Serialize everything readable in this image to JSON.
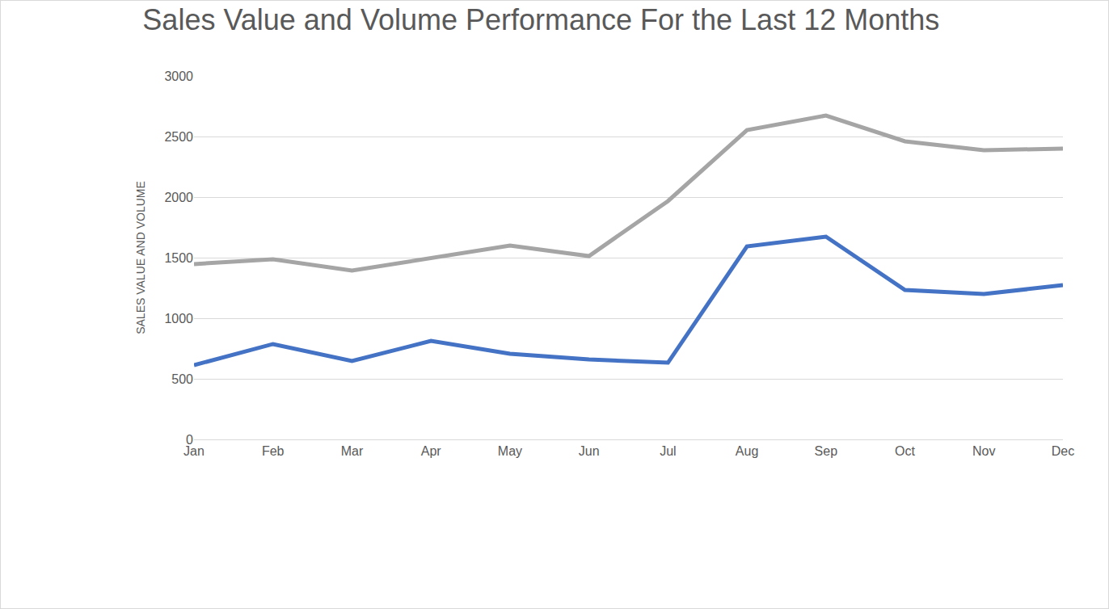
{
  "chart_data": {
    "type": "line",
    "title": "Sales Value and Volume Performance For the Last 12 Months",
    "y_label": "SALES VALUE AND VOLUME",
    "categories": [
      "Jan",
      "Feb",
      "Mar",
      "Apr",
      "May",
      "Jun",
      "Jul",
      "Aug",
      "Sep",
      "Oct",
      "Nov",
      "Dec"
    ],
    "series": [
      {
        "color": "#a5a5a5",
        "values": [
          1447,
          1487,
          1393,
          1493,
          1600,
          1513,
          1967,
          2553,
          2673,
          2460,
          2387,
          2400
        ]
      },
      {
        "color": "#4472c4",
        "values": [
          613,
          787,
          647,
          813,
          707,
          660,
          633,
          1593,
          1673,
          1233,
          1200,
          1273
        ]
      }
    ],
    "ylim": [
      0,
      3000
    ],
    "yticks": [
      0,
      500,
      1000,
      1500,
      2000,
      2500,
      3000
    ],
    "grid": true
  }
}
